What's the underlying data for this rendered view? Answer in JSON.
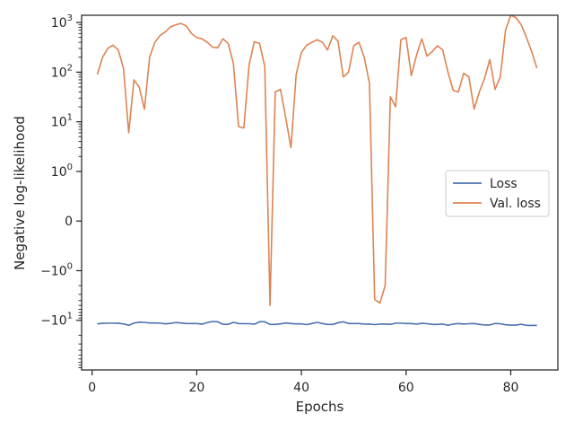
{
  "chart_data": {
    "type": "line",
    "xlabel": "Epochs",
    "ylabel": "Negative log-likelihood",
    "yscale": "symlog",
    "symlog_linthresh": 1,
    "xlim": [
      -2,
      89
    ],
    "ylim": [
      -100,
      1400
    ],
    "x_ticks": [
      0,
      20,
      40,
      60,
      80
    ],
    "x_tick_labels": [
      "0",
      "20",
      "40",
      "60",
      "80"
    ],
    "y_ticks": [
      {
        "value": 1000,
        "base": "10",
        "exp": "3"
      },
      {
        "value": 100,
        "base": "10",
        "exp": "2"
      },
      {
        "value": 10,
        "base": "10",
        "exp": "1"
      },
      {
        "value": 1,
        "base": "10",
        "exp": "0"
      },
      {
        "value": 0,
        "base": "0",
        "exp": ""
      },
      {
        "value": -1,
        "base": "−10",
        "exp": "0"
      },
      {
        "value": -10,
        "base": "−10",
        "exp": "1"
      }
    ],
    "grid": false,
    "legend_position": "center-right",
    "series": [
      {
        "name": "Loss",
        "color": "#4c72b0",
        "x": [
          1,
          2,
          3,
          4,
          5,
          6,
          7,
          8,
          9,
          10,
          11,
          12,
          13,
          14,
          15,
          16,
          17,
          18,
          19,
          20,
          21,
          22,
          23,
          24,
          25,
          26,
          27,
          28,
          29,
          30,
          31,
          32,
          33,
          34,
          35,
          36,
          37,
          38,
          39,
          40,
          41,
          42,
          43,
          44,
          45,
          46,
          47,
          48,
          49,
          50,
          51,
          52,
          53,
          54,
          55,
          56,
          57,
          58,
          59,
          60,
          61,
          62,
          63,
          64,
          65,
          66,
          67,
          68,
          69,
          70,
          71,
          72,
          73,
          74,
          75,
          76,
          77,
          78,
          79,
          80,
          81,
          82,
          83,
          84,
          85
        ],
        "y": [
          -11.8,
          -11.5,
          -11.4,
          -11.4,
          -11.5,
          -11.8,
          -12.6,
          -11.4,
          -10.9,
          -11.0,
          -11.3,
          -11.3,
          -11.4,
          -11.8,
          -11.5,
          -11.1,
          -11.3,
          -11.6,
          -11.6,
          -11.6,
          -12.0,
          -11.1,
          -10.6,
          -10.7,
          -12.0,
          -12.1,
          -11.0,
          -11.6,
          -11.7,
          -11.7,
          -12.0,
          -10.7,
          -10.7,
          -12.1,
          -12.1,
          -11.8,
          -11.3,
          -11.6,
          -11.8,
          -11.8,
          -12.2,
          -11.6,
          -11.0,
          -11.6,
          -12.1,
          -12.1,
          -11.2,
          -10.7,
          -11.6,
          -11.6,
          -11.6,
          -11.9,
          -11.9,
          -12.2,
          -11.9,
          -11.9,
          -12.1,
          -11.4,
          -11.4,
          -11.6,
          -11.6,
          -11.9,
          -11.5,
          -11.7,
          -12.1,
          -12.1,
          -11.9,
          -12.6,
          -11.9,
          -11.6,
          -11.9,
          -11.7,
          -11.6,
          -12.1,
          -12.4,
          -12.4,
          -11.6,
          -11.7,
          -12.3,
          -12.5,
          -12.5,
          -12.0,
          -12.6,
          -12.7,
          -12.6
        ]
      },
      {
        "name": "Val. loss",
        "color": "#dd8452",
        "x": [
          1,
          2,
          3,
          4,
          5,
          6,
          7,
          8,
          9,
          10,
          11,
          12,
          13,
          14,
          15,
          16,
          17,
          18,
          19,
          20,
          21,
          22,
          23,
          24,
          25,
          26,
          27,
          28,
          29,
          30,
          31,
          32,
          33,
          34,
          35,
          36,
          37,
          38,
          39,
          40,
          41,
          42,
          43,
          44,
          45,
          46,
          47,
          48,
          49,
          50,
          51,
          52,
          53,
          54,
          55,
          56,
          57,
          58,
          59,
          60,
          61,
          62,
          63,
          64,
          65,
          66,
          67,
          68,
          69,
          70,
          71,
          72,
          73,
          74,
          75,
          76,
          77,
          78,
          79,
          80,
          81,
          82,
          83,
          84,
          85
        ],
        "y": [
          90,
          200,
          300,
          350,
          280,
          120,
          6,
          70,
          50,
          18,
          200,
          400,
          550,
          650,
          820,
          900,
          960,
          850,
          600,
          500,
          470,
          400,
          320,
          310,
          470,
          380,
          150,
          8,
          7.5,
          140,
          410,
          380,
          130,
          -5,
          40,
          45,
          12,
          3,
          90,
          250,
          350,
          400,
          450,
          400,
          280,
          540,
          420,
          80,
          100,
          340,
          400,
          200,
          60,
          -3.8,
          -4.5,
          -2,
          32,
          20,
          450,
          500,
          85,
          220,
          470,
          210,
          260,
          340,
          280,
          100,
          43,
          40,
          95,
          80,
          18,
          40,
          75,
          180,
          45,
          80,
          700,
          1400,
          1250,
          900,
          500,
          260,
          120
        ]
      }
    ]
  }
}
